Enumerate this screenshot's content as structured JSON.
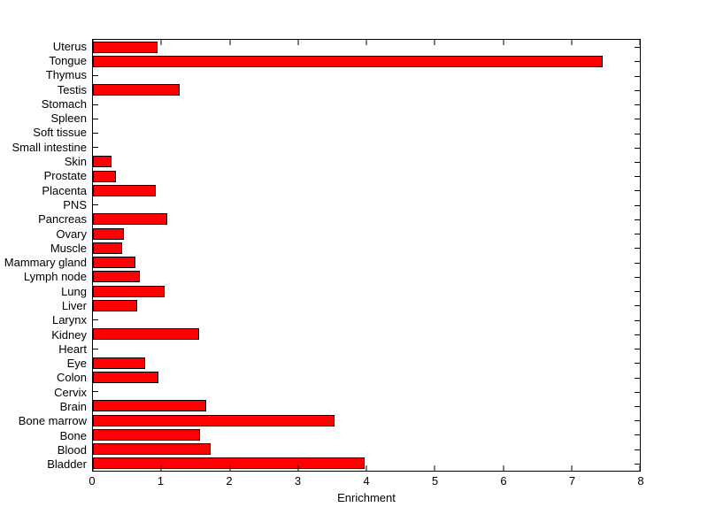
{
  "chart_data": {
    "type": "bar",
    "orientation": "horizontal",
    "title": "",
    "xlabel": "Enrichment",
    "ylabel": "",
    "xlim": [
      0,
      8
    ],
    "xticks": [
      "0",
      "1",
      "2",
      "3",
      "4",
      "5",
      "6",
      "7",
      "8"
    ],
    "grid": false,
    "legend": "none",
    "bar_color": "#ff0000",
    "bar_edge_color": "#000000",
    "axis_color": "#000000",
    "background_color": "#ffffff",
    "categories": [
      "Uterus",
      "Tongue",
      "Thymus",
      "Testis",
      "Stomach",
      "Spleen",
      "Soft tissue",
      "Small intestine",
      "Skin",
      "Prostate",
      "Placenta",
      "PNS",
      "Pancreas",
      "Ovary",
      "Muscle",
      "Mammary gland",
      "Lymph node",
      "Lung",
      "Liver",
      "Larynx",
      "Kidney",
      "Heart",
      "Eye",
      "Colon",
      "Cervix",
      "Brain",
      "Bone marrow",
      "Bone",
      "Blood",
      "Bladder"
    ],
    "values": [
      0.95,
      7.45,
      0,
      1.27,
      0,
      0,
      0,
      0,
      0.27,
      0.34,
      0.92,
      0,
      1.09,
      0.45,
      0.43,
      0.62,
      0.68,
      1.05,
      0.65,
      0,
      1.55,
      0,
      0.77,
      0.96,
      0,
      1.66,
      3.54,
      1.57,
      1.72,
      3.97
    ]
  }
}
